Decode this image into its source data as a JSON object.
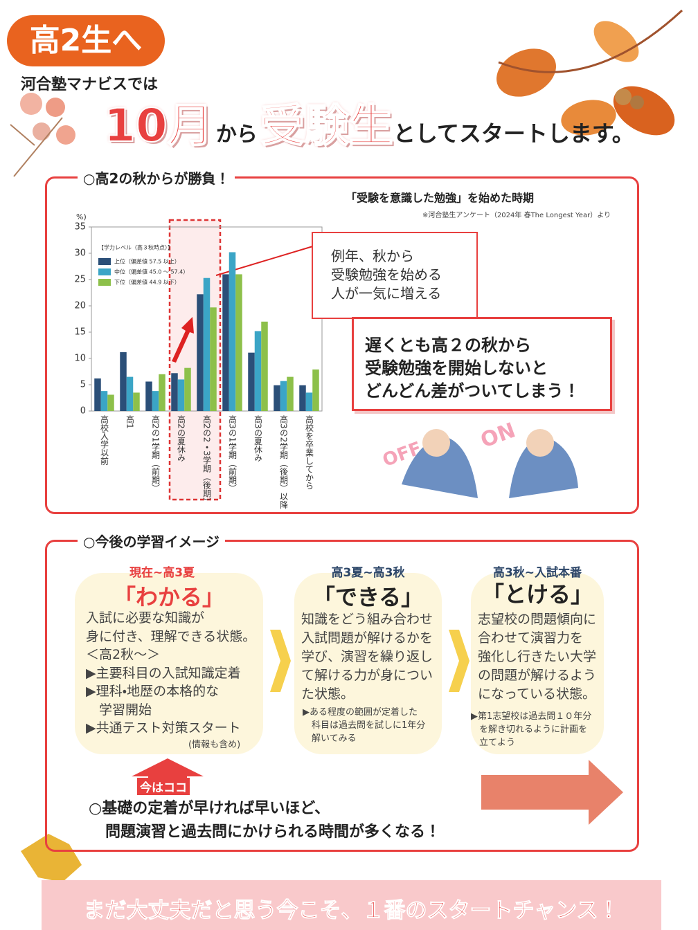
{
  "header": {
    "badge": "高2生へ",
    "lead": "河合塾マナビスでは",
    "headline": [
      "10月",
      "から",
      "受験生",
      "としてスタートします。"
    ]
  },
  "section1": {
    "heading": "○高2の秋からが勝負！",
    "callout": [
      "例年、秋から",
      "受験勉強を始める",
      "人が一気に増える"
    ],
    "message": [
      "遅くとも高２の秋から",
      "受験勉強を開始しないと",
      "どんどん差がついてしまう！"
    ],
    "switch_labels": [
      "OFF",
      "ON"
    ]
  },
  "chart_data": {
    "type": "bar",
    "title": "「受験を意識した勉強」を始めた時期",
    "source": "※河合塾生アンケート（2024年 春The Longest Year）より",
    "y_unit": "%)",
    "legend_title": "【学力レベル（高３秋時点）】",
    "categories": [
      "高校入学以前",
      "高1",
      "高2の1学期（前期）",
      "高2の夏休み",
      "高2の2・3学期（後期）",
      "高3の1学期（前期）",
      "高3の夏休み",
      "高3の2学期（後期）以降",
      "高校を卒業してから"
    ],
    "series": [
      {
        "name": "上位（偏差値 57.5 以上）",
        "color": "#2b4f78",
        "values": [
          6.2,
          11.2,
          5.6,
          7.2,
          22.2,
          26,
          11.1,
          4.9,
          4.9
        ]
      },
      {
        "name": "中位（偏差値 45.0 〜 57.4）",
        "color": "#3ba5c6",
        "values": [
          3.8,
          6.5,
          3.8,
          6.0,
          25.3,
          30.2,
          15.2,
          5.7,
          3.5
        ]
      },
      {
        "name": "下位（偏差値 44.9 以下）",
        "color": "#8dc04a",
        "values": [
          3.1,
          3.5,
          7.0,
          8.2,
          19.7,
          26,
          17.0,
          6.5,
          7.9
        ]
      }
    ],
    "ylim": [
      0,
      35
    ],
    "yticks": [
      0,
      5,
      10,
      15,
      20,
      25,
      30,
      35
    ],
    "grid": false
  },
  "section2": {
    "heading": "○今後の学習イメージ",
    "stages": [
      {
        "label": "現在~高3夏",
        "title": "「わかる」",
        "body": [
          "入試に必要な知識が",
          "身に付き、理解できる状態。",
          "＜高2秋～＞",
          "▶主要科目の入試知識定着",
          "▶理科・地歴の本格的な",
          "　学習開始",
          "▶共通テスト対策スタート"
        ],
        "note": [
          "(情報も含め)"
        ]
      },
      {
        "label": "高3夏~高3秋",
        "title": "「できる」",
        "body": [
          "知識をどう組み合わせ",
          "入試問題が解けるかを",
          "学び、演習を繰り返し",
          "て解ける力が身につい",
          "た状態。"
        ],
        "note": [
          "▶ある程度の範囲が定着した",
          "　科目は過去問を試しに1年分",
          "　解いてみる"
        ]
      },
      {
        "label": "高3秋~入試本番",
        "title": "「とける」",
        "body": [
          "志望校の問題傾向に",
          "合わせて演習力を",
          "強化し行きたい大学",
          "の問題が解けるよう",
          "になっている状態。"
        ],
        "note": [
          "▶第1志望校は過去問１０年分",
          "を解き切れるように計画を",
          "立てよう"
        ]
      }
    ],
    "here": "今はココ",
    "conclusion": [
      "○基礎の定着が早ければ早いほど、",
      "問題演習と過去問にかけられる時間が多くなる！"
    ]
  },
  "footer": {
    "banner": "まだ大丈夫だと思う今こそ、１番のスタートチャンス！"
  }
}
